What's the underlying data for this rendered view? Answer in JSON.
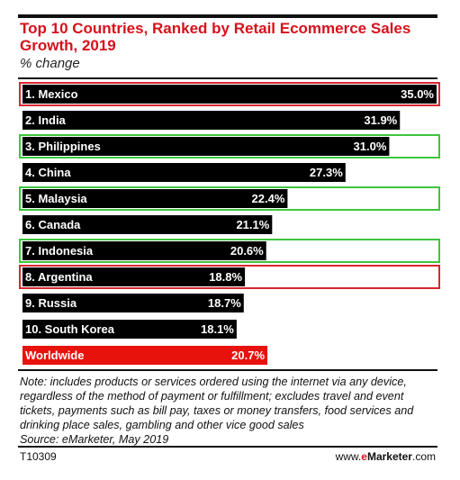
{
  "header": {
    "title": "Top 10 Countries, Ranked by Retail Ecommerce Sales Growth, 2019",
    "subtitle": "% change"
  },
  "chart_data": {
    "type": "bar",
    "orientation": "horizontal",
    "title": "Top 10 Countries, Ranked by Retail Ecommerce Sales Growth, 2019",
    "subtitle": "% change",
    "unit": "%",
    "xlim": [
      0,
      35
    ],
    "bars": [
      {
        "label": "1. Mexico",
        "value": 35.0,
        "value_label": "35.0%",
        "highlight": "red"
      },
      {
        "label": "2. India",
        "value": 31.9,
        "value_label": "31.9%",
        "highlight": "none"
      },
      {
        "label": "3. Philippines",
        "value": 31.0,
        "value_label": "31.0%",
        "highlight": "green"
      },
      {
        "label": "4. China",
        "value": 27.3,
        "value_label": "27.3%",
        "highlight": "none"
      },
      {
        "label": "5. Malaysia",
        "value": 22.4,
        "value_label": "22.4%",
        "highlight": "green"
      },
      {
        "label": "6. Canada",
        "value": 21.1,
        "value_label": "21.1%",
        "highlight": "none"
      },
      {
        "label": "7. Indonesia",
        "value": 20.6,
        "value_label": "20.6%",
        "highlight": "green"
      },
      {
        "label": "8. Argentina",
        "value": 18.8,
        "value_label": "18.8%",
        "highlight": "red"
      },
      {
        "label": "9. Russia",
        "value": 18.7,
        "value_label": "18.7%",
        "highlight": "none"
      },
      {
        "label": "10. South Korea",
        "value": 18.1,
        "value_label": "18.1%",
        "highlight": "none"
      },
      {
        "label": "Worldwide",
        "value": 20.7,
        "value_label": "20.7%",
        "highlight": "worldwide"
      }
    ],
    "colors": {
      "bar": "#000000",
      "worldwide": "#e8120c",
      "highlight_red": "#d9262e",
      "highlight_green": "#3ec63e",
      "title": "#d6111b"
    }
  },
  "note": "Note: includes products or services ordered using the internet via any device, regardless of the method of payment or fulfillment; excludes travel and event tickets, payments such as bill pay, taxes or money transfers, food services and drinking place sales, gambling and other vice good sales",
  "source": "Source: eMarketer, May 2019",
  "footer": {
    "id": "T10309",
    "site_prefix": "www.",
    "site_brand": "e",
    "site_name": "Marketer",
    "site_suffix": ".com"
  }
}
